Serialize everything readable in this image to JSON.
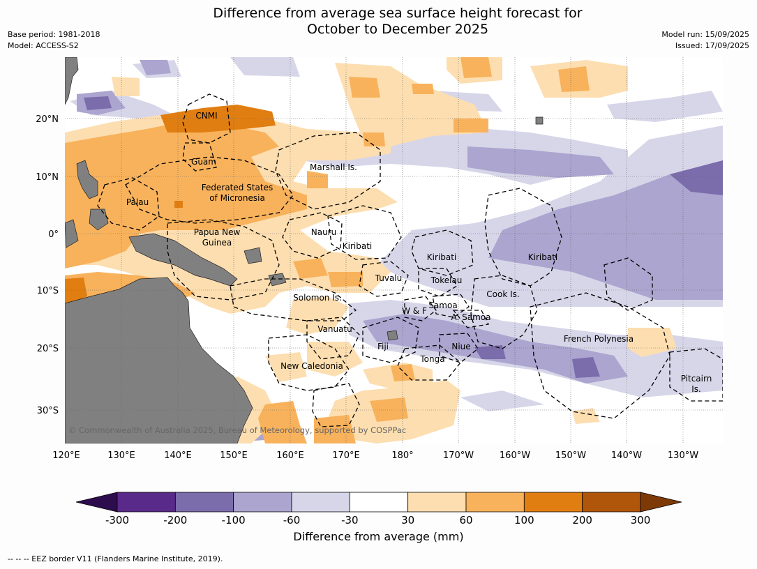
{
  "title_line1": "Difference from average sea surface height forecast for",
  "title_line2": "October to December 2025",
  "meta_left": [
    "Base period: 1981-2018",
    "Model: ACCESS-S2"
  ],
  "meta_right": [
    "Model run: 15/09/2025",
    "Issued: 17/09/2025"
  ],
  "copyright": "© Commonwealth of Australia 2025, Bureau of Meteorology, supported by COSPPac",
  "lon_ticks": [
    "120°E",
    "130°E",
    "140°E",
    "150°E",
    "160°E",
    "170°E",
    "180°",
    "170°W",
    "160°W",
    "150°W",
    "140°W",
    "130°W"
  ],
  "lat_ticks": [
    "20°N",
    "10°N",
    "0°",
    "10°S",
    "20°S",
    "30°S"
  ],
  "eez_labels": [
    {
      "text": "CNMI"
    },
    {
      "text": "Guam"
    },
    {
      "text": "Marshall Is."
    },
    {
      "text": "Federated States"
    },
    {
      "text": "of Micronesia"
    },
    {
      "text": "Palau"
    },
    {
      "text": "Nauru"
    },
    {
      "text": "Papua New"
    },
    {
      "text": "Guinea"
    },
    {
      "text": "Kiribati"
    },
    {
      "text": "Kiribati"
    },
    {
      "text": "Kiribati"
    },
    {
      "text": "Tuvalu"
    },
    {
      "text": "Tokelau"
    },
    {
      "text": "Cook Is."
    },
    {
      "text": "Solomon Is."
    },
    {
      "text": "W & F"
    },
    {
      "text": "Samoa"
    },
    {
      "text": "A. Samoa"
    },
    {
      "text": "Vanuatu"
    },
    {
      "text": "Fiji"
    },
    {
      "text": "Niue"
    },
    {
      "text": "Tonga"
    },
    {
      "text": "French Polynesia"
    },
    {
      "text": "New Caledonia"
    },
    {
      "text": "Pitcairn"
    },
    {
      "text": "Is."
    }
  ],
  "colorbar": {
    "ticks": [
      "-300",
      "-200",
      "-100",
      "-60",
      "-30",
      "30",
      "60",
      "100",
      "200",
      "300"
    ],
    "colors": [
      "#5a2a8a",
      "#7b6cab",
      "#aba5cf",
      "#d7d6e9",
      "#ffffff",
      "#fddeb0",
      "#f8b25c",
      "#e07e12",
      "#b0560a"
    ],
    "under_color": "#2e0d4f",
    "over_color": "#7e3a06",
    "label": "Difference from average (mm)"
  },
  "footer": "--  --  -- EEZ border V11 (Flanders Marine Institute, 2019).",
  "colors": {
    "land": "#808080",
    "ocean_neutral": "#ffffff"
  }
}
